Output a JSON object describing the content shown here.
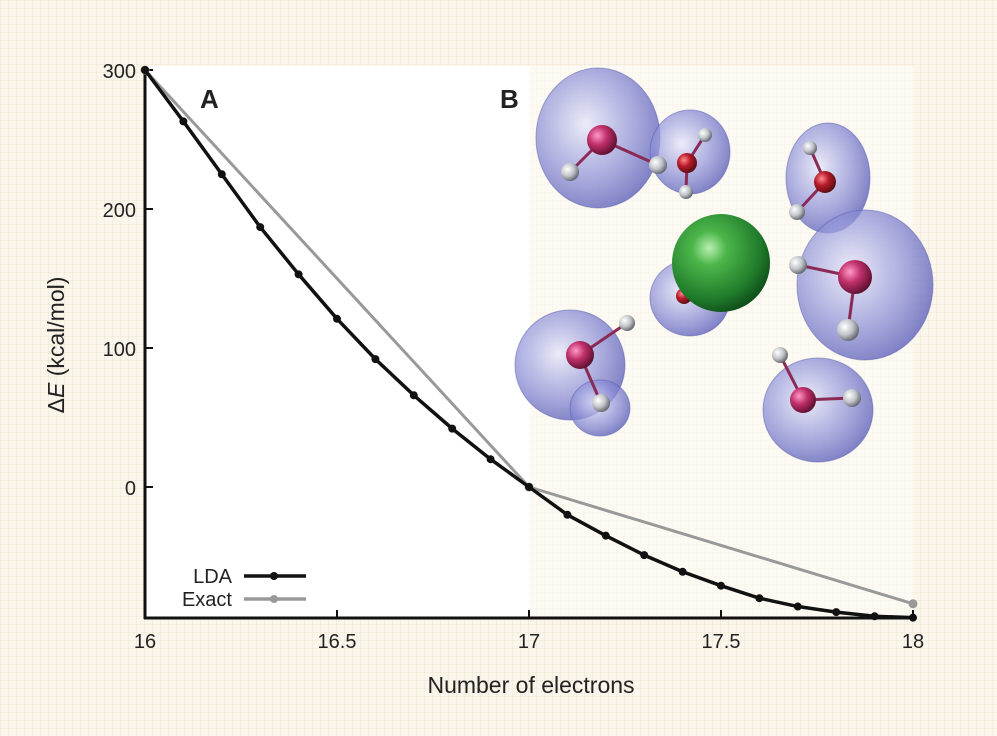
{
  "figure": {
    "panel_a_label": "A",
    "panel_b_label": "B",
    "background_color": "#fbf6ec",
    "plot_background_color": "#ffffff"
  },
  "chart_data": {
    "type": "line",
    "title": "",
    "xlabel": "Number of electrons",
    "ylabel": "ΔE (kcal/mol)",
    "ylabel_parts": {
      "delta": "Δ",
      "symbol": "E",
      "unit": " (kcal/mol)"
    },
    "xlim": [
      16,
      18
    ],
    "ylim": [
      -94,
      300
    ],
    "x_ticks": [
      16,
      16.5,
      17,
      17.5,
      18
    ],
    "x_tick_labels": [
      "16",
      "16.5",
      "17",
      "17.5",
      "18"
    ],
    "y_ticks": [
      0,
      100,
      200,
      300
    ],
    "y_tick_labels": [
      "0",
      "100",
      "200",
      "300"
    ],
    "grid": false,
    "legend_position": "lower left",
    "series": [
      {
        "name": "LDA",
        "color": "#111111",
        "marker": "circle",
        "x": [
          16,
          16.1,
          16.2,
          16.3,
          16.4,
          16.5,
          16.6,
          16.7,
          16.8,
          16.9,
          17,
          17.1,
          17.2,
          17.3,
          17.4,
          17.5,
          17.6,
          17.7,
          17.8,
          17.9,
          18
        ],
        "values": [
          300,
          263,
          225,
          187,
          153,
          121,
          92,
          66,
          42,
          20,
          0,
          -20,
          -35,
          -49,
          -61,
          -71,
          -80,
          -86,
          -90,
          -93,
          -94
        ]
      },
      {
        "name": "Exact",
        "color": "#999999",
        "marker": "circle",
        "x": [
          16,
          17,
          18
        ],
        "values": [
          300,
          0,
          -84
        ]
      }
    ],
    "inset": {
      "panel": "B",
      "description": "Chloride ion (green sphere) surrounded by six water molecules with translucent blue electron density isosurfaces",
      "central_ion_color": "#2e9a3a",
      "isosurface_color": "#7b7fd0",
      "oxygen_color": "#c0306a",
      "hydrogen_color": "#d8d8d8"
    }
  }
}
